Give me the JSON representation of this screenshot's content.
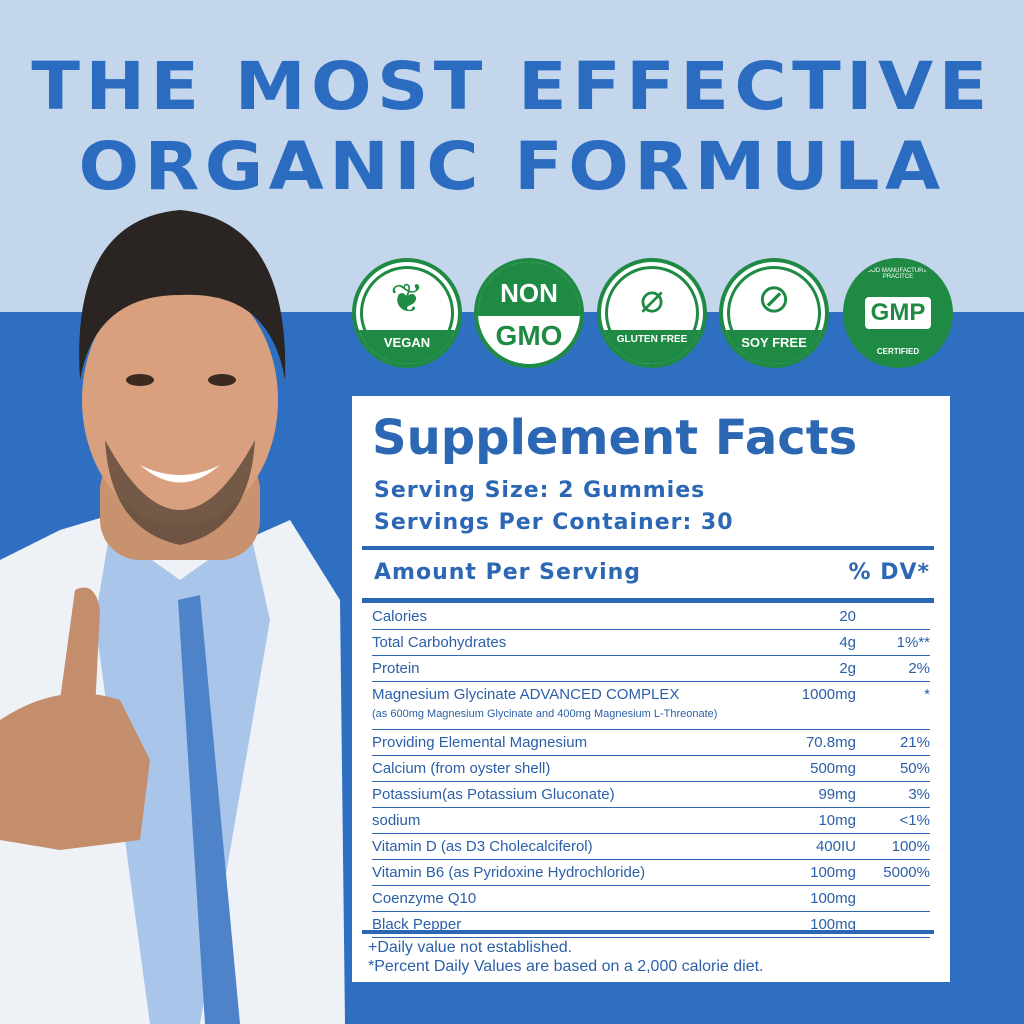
{
  "headline": {
    "line1": "THE MOST EFFECTIVE",
    "line2": "ORGANIC FORMULA"
  },
  "colors": {
    "title": "#2b6cc1",
    "top_bg": "#c4d6ec",
    "bottom_bg": "#2f6fc2",
    "badge_green": "#1f8a43",
    "panel_text": "#2b67b3"
  },
  "badges": [
    {
      "icon": "leaf-icon",
      "label": "VEGAN"
    },
    {
      "icon": "non-gmo-icon",
      "label_top": "NON",
      "label": "GMO"
    },
    {
      "icon": "wheat-crossed-icon",
      "label": "GLUTEN FREE"
    },
    {
      "icon": "soybean-crossed-icon",
      "label": "SOY FREE"
    },
    {
      "icon": "gmp-seal-icon",
      "label": "GMP",
      "ring_top": "GOOD MANUFACTURING PRACITCE",
      "ring_bottom": "CERTIFIED"
    }
  ],
  "facts": {
    "title": "Supplement Facts",
    "serving_size": "Serving Size: 2 Gummies",
    "servings_per_container": "Servings Per Container: 30",
    "amount_header": "Amount Per Serving",
    "dv_header": "% DV*",
    "rows": [
      {
        "name": "Calories",
        "amount": "20",
        "dv": ""
      },
      {
        "name": "Total Carbohydrates",
        "amount": "4g",
        "dv": "1%**"
      },
      {
        "name": "Protein",
        "amount": "2g",
        "dv": "2%"
      },
      {
        "name": "Magnesium Glycinate ADVANCED COMPLEX",
        "amount": "1000mg",
        "dv": "*",
        "sub": "(as 600mg Magnesium Glycinate and 400mg Magnesium L-Threonate)"
      },
      {
        "name": "Providing Elemental Magnesium",
        "amount": "70.8mg",
        "dv": "21%"
      },
      {
        "name": "Calcium (from oyster shell)",
        "amount": "500mg",
        "dv": "50%"
      },
      {
        "name": "Potassium(as Potassium Gluconate)",
        "amount": "99mg",
        "dv": "3%"
      },
      {
        "name": "sodium",
        "amount": "10mg",
        "dv": "<1%"
      },
      {
        "name": "Vitamin D (as D3 Cholecalciferol)",
        "amount": "400IU",
        "dv": "100%"
      },
      {
        "name": "Vitamin B6 (as Pyridoxine Hydrochloride)",
        "amount": "100mg",
        "dv": "5000%"
      },
      {
        "name": "Coenzyme Q10",
        "amount": "100mg",
        "dv": ""
      },
      {
        "name": "Black Pepper",
        "amount": "100mg",
        "dv": ""
      }
    ],
    "footnote1": "+Daily value not established.",
    "footnote2": "*Percent Daily Values are based on a 2,000 calorie diet."
  }
}
